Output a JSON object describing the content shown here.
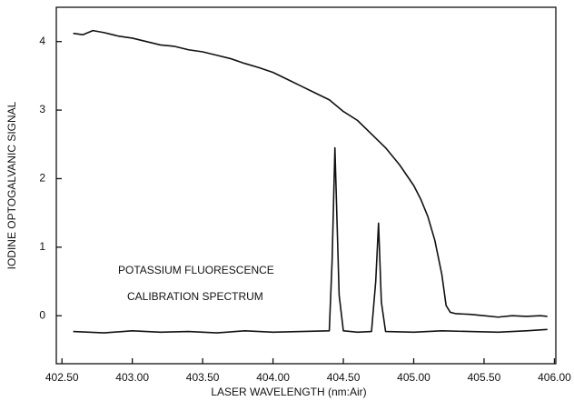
{
  "chart_data": {
    "type": "line",
    "xlabel": "LASER WAVELENGTH  (nm:Air)",
    "ylabel": "IODINE OPTOGALVANIC SIGNAL",
    "annotations": [
      "POTASSIUM FLUORESCENCE",
      "CALIBRATION SPECTRUM"
    ],
    "xlim": [
      402.46,
      406.01
    ],
    "ylim": [
      -0.7,
      4.5
    ],
    "xticks": [
      {
        "value": 402.5,
        "label": "402.50"
      },
      {
        "value": 403,
        "label": "403.00"
      },
      {
        "value": 403.5,
        "label": "403.50"
      },
      {
        "value": 404,
        "label": "404.00"
      },
      {
        "value": 404.5,
        "label": "404.50"
      },
      {
        "value": 405,
        "label": "405.00"
      },
      {
        "value": 405.5,
        "label": "405.50"
      },
      {
        "value": 406,
        "label": "406.00"
      }
    ],
    "yticks": [
      0,
      1,
      2,
      3,
      4
    ],
    "grid": false,
    "series": [
      {
        "color": "#111111",
        "x": [
          402.58,
          402.65,
          402.72,
          402.8,
          402.9,
          403.0,
          403.1,
          403.2,
          403.3,
          403.4,
          403.5,
          403.6,
          403.7,
          403.8,
          403.9,
          404.0,
          404.1,
          404.2,
          404.3,
          404.4,
          404.5,
          404.6,
          404.7,
          404.8,
          404.9,
          405.0,
          405.05,
          405.1,
          405.15,
          405.2,
          405.23,
          405.26,
          405.3,
          405.4,
          405.5,
          405.6,
          405.7,
          405.8,
          405.9,
          405.95
        ],
        "values": [
          4.12,
          4.1,
          4.16,
          4.13,
          4.08,
          4.05,
          4.0,
          3.95,
          3.93,
          3.88,
          3.85,
          3.8,
          3.75,
          3.68,
          3.62,
          3.55,
          3.45,
          3.35,
          3.25,
          3.15,
          2.98,
          2.85,
          2.65,
          2.45,
          2.2,
          1.9,
          1.7,
          1.45,
          1.1,
          0.6,
          0.15,
          0.05,
          0.03,
          0.02,
          0.0,
          -0.02,
          0.0,
          -0.01,
          0.0,
          -0.01
        ]
      },
      {
        "color": "#111111",
        "x": [
          402.58,
          402.8,
          403.0,
          403.2,
          403.4,
          403.6,
          403.8,
          404.0,
          404.2,
          404.4,
          404.42,
          404.44,
          404.47,
          404.5,
          404.6,
          404.7,
          404.73,
          404.75,
          404.77,
          404.8,
          405.0,
          405.2,
          405.4,
          405.6,
          405.8,
          405.95
        ],
        "values": [
          -0.23,
          -0.25,
          -0.22,
          -0.24,
          -0.23,
          -0.25,
          -0.22,
          -0.24,
          -0.23,
          -0.22,
          0.8,
          2.45,
          0.3,
          -0.22,
          -0.24,
          -0.23,
          0.5,
          1.35,
          0.2,
          -0.23,
          -0.24,
          -0.22,
          -0.23,
          -0.24,
          -0.22,
          -0.2
        ]
      }
    ]
  }
}
